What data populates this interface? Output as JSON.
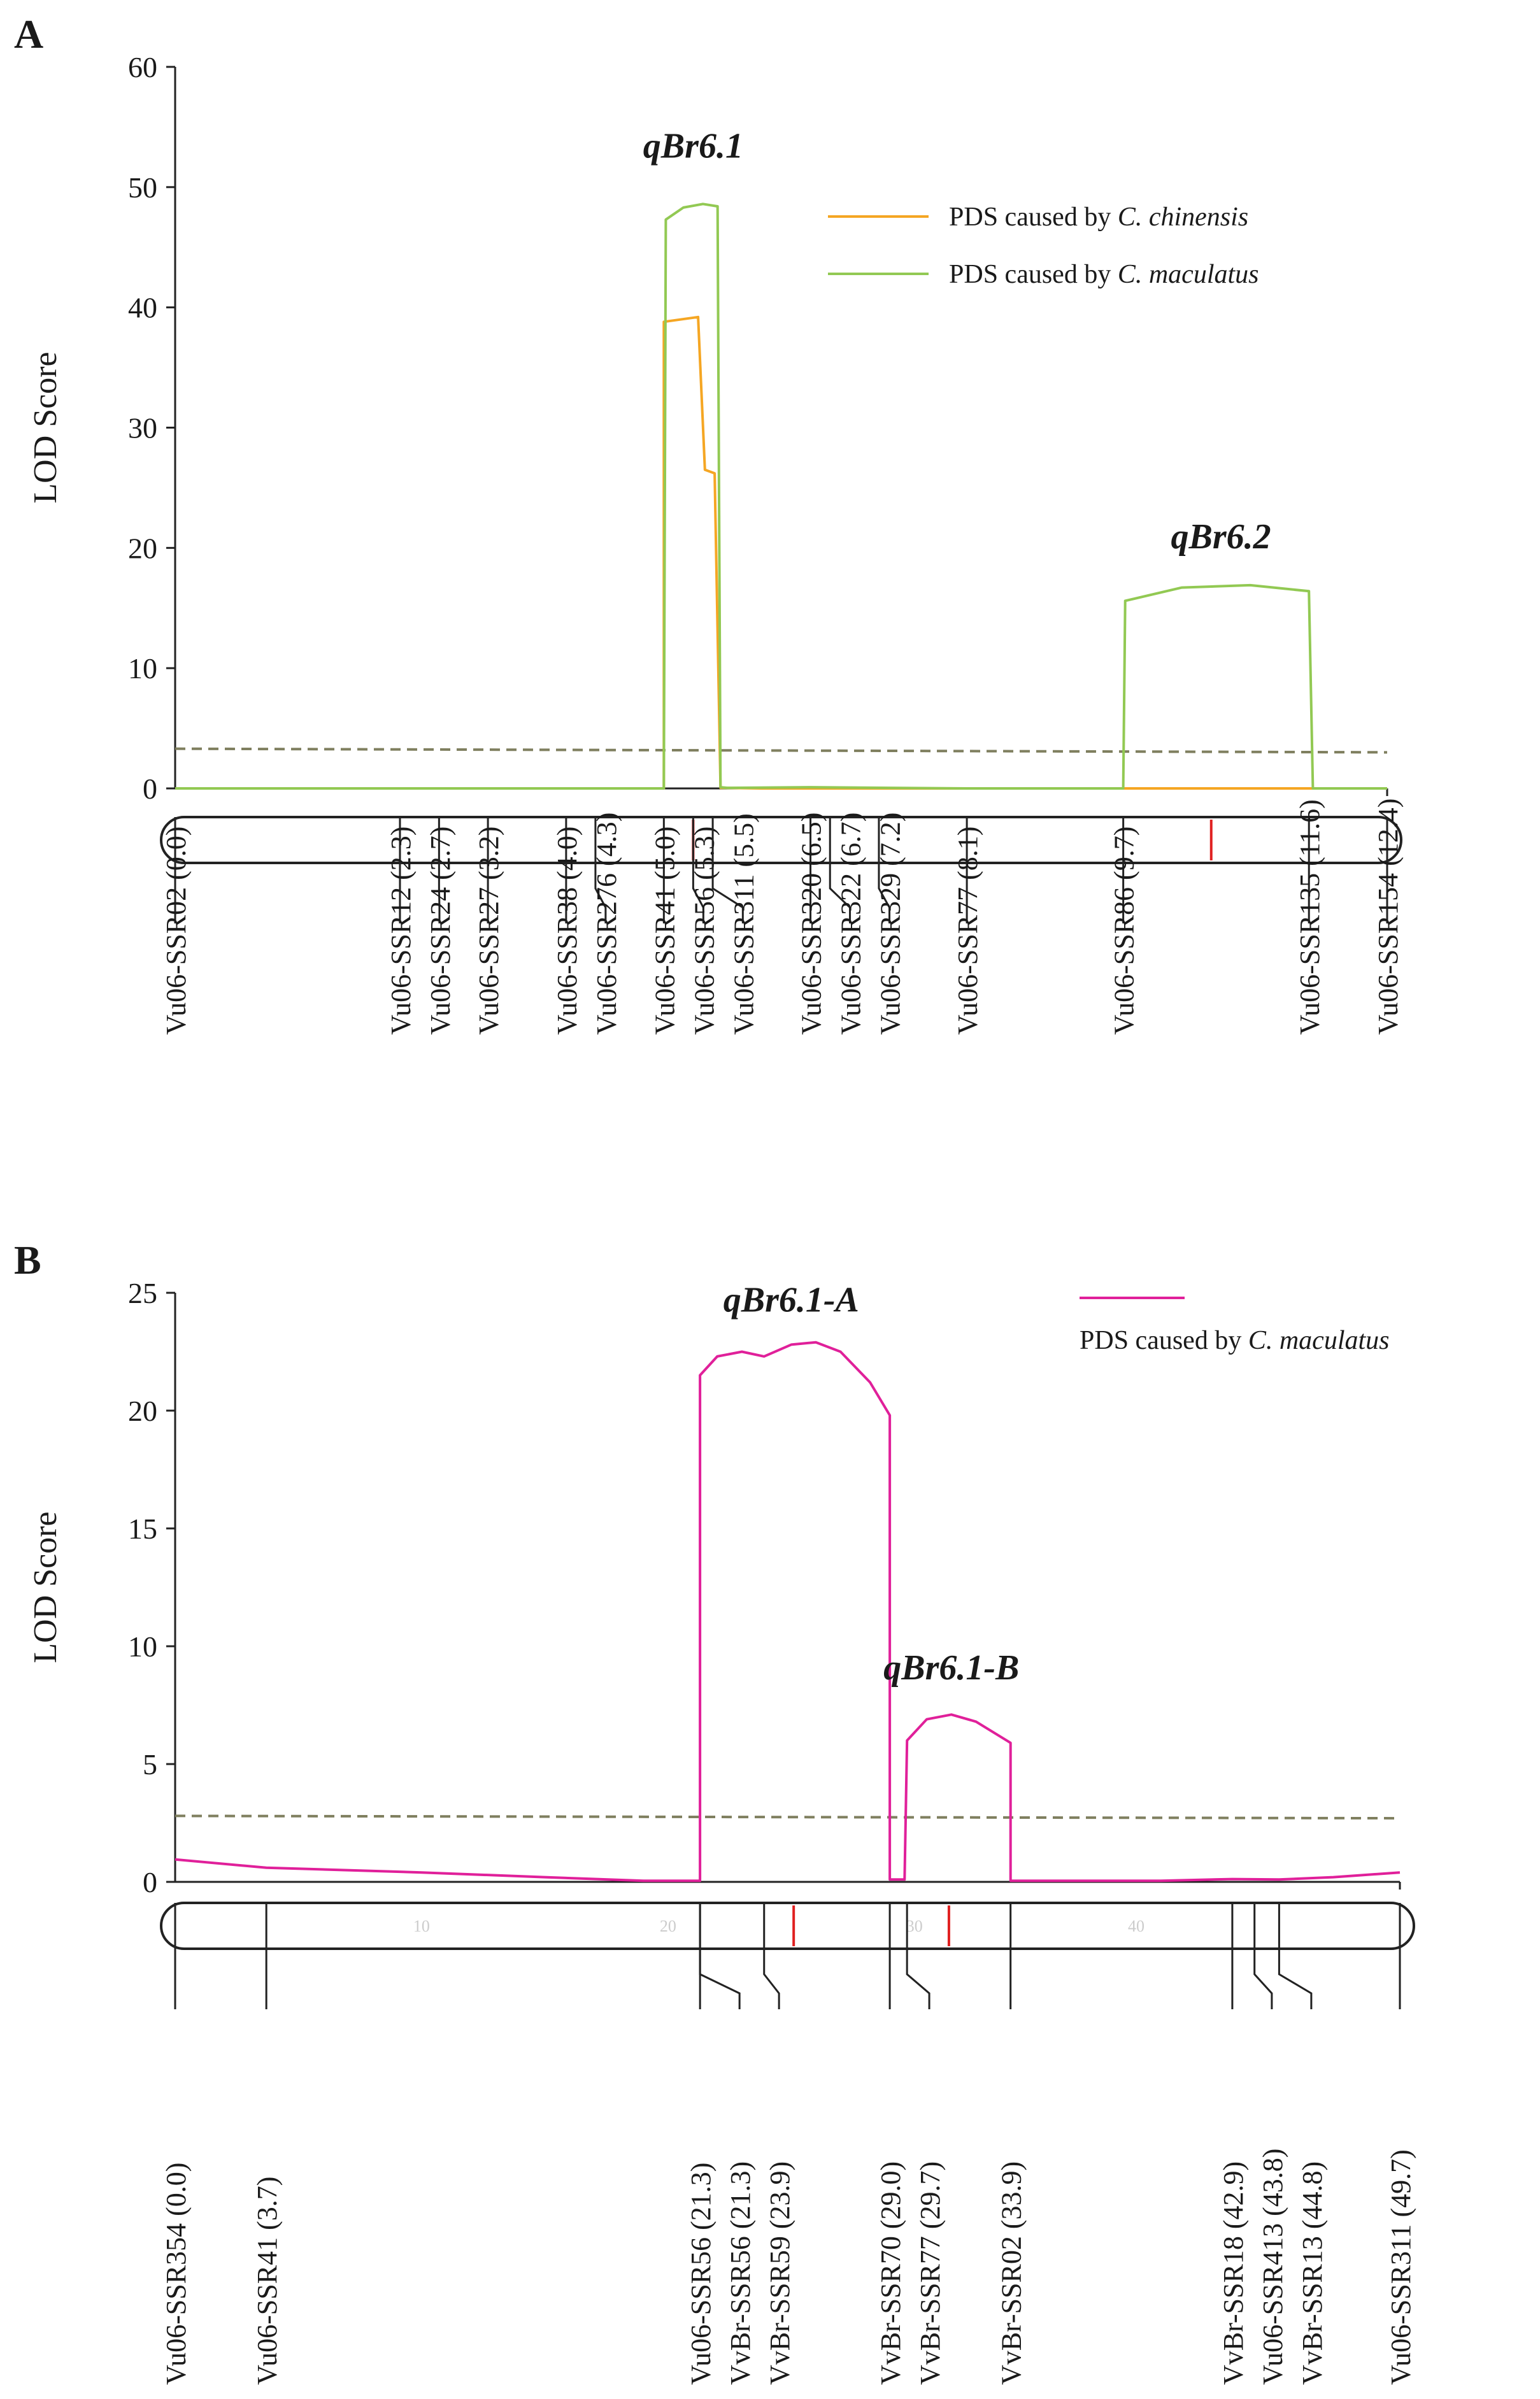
{
  "chart_data": [
    {
      "panel": "A",
      "type": "line",
      "ylabel": "LOD Score",
      "xlabel": "",
      "ylim": [
        0,
        60
      ],
      "xlim": [
        0,
        12.4
      ],
      "yticks": [
        0,
        10,
        20,
        30,
        40,
        50,
        60
      ],
      "threshold": {
        "start": 3.3,
        "end": 3.0,
        "style": "dashed",
        "color": "#7f7f5f"
      },
      "series": [
        {
          "name": "PDS caused by C. chinensis",
          "label_prefix": "PDS caused by",
          "label_species": "C. chinensis",
          "color": "#f5a623",
          "x": [
            0.0,
            2.0,
            4.0,
            4.9,
            5.0,
            5.0,
            5.35,
            5.42,
            5.52,
            5.58,
            5.58,
            6.0,
            8.0,
            9.7,
            10.5,
            11.6,
            12.4
          ],
          "y": [
            0.0,
            0.0,
            0.0,
            0.0,
            0.0,
            38.8,
            39.2,
            26.5,
            26.2,
            0.05,
            0.05,
            0.0,
            0.0,
            0.0,
            0.0,
            0.0,
            0.0
          ]
        },
        {
          "name": "PDS caused by C. maculatus",
          "label_prefix": "PDS caused by",
          "label_species": "C. maculatus",
          "color": "#92c953",
          "x": [
            0.0,
            2.0,
            4.0,
            4.9,
            5.0,
            5.02,
            5.2,
            5.4,
            5.55,
            5.58,
            5.65,
            6.5,
            8.1,
            9.7,
            9.72,
            10.3,
            11.0,
            11.6,
            11.64,
            12.4
          ],
          "y": [
            0.0,
            0.0,
            0.0,
            0.0,
            0.0,
            47.3,
            48.3,
            48.6,
            48.4,
            0.1,
            0.05,
            0.1,
            0.0,
            0.0,
            15.6,
            16.7,
            16.9,
            16.4,
            0.0,
            0.0
          ]
        }
      ],
      "annotations": [
        {
          "text": "qBr6.1",
          "x": 5.3,
          "y": 51.5
        },
        {
          "text": "qBr6.2",
          "x": 10.7,
          "y": 19.0
        }
      ],
      "highlight_positions": [
        5.3,
        10.6
      ],
      "highlight_color": "#e02020",
      "markers": [
        {
          "name": "Vu06-SSR02 (0.0)",
          "pos": 0.0
        },
        {
          "name": "Vu06-SSR12 (2.3)",
          "pos": 2.3
        },
        {
          "name": "Vu06-SSR24 (2.7)",
          "pos": 2.7
        },
        {
          "name": "Vu06-SSR27 (3.2)",
          "pos": 3.2
        },
        {
          "name": "Vu06-SSR38 (4.0)",
          "pos": 4.0
        },
        {
          "name": "Vu06-SSR276 (4.3)",
          "pos": 4.3
        },
        {
          "name": "Vu06-SSR41 (5.0)",
          "pos": 5.0
        },
        {
          "name": "Vu06-SSR56 (5.3)",
          "pos": 5.3
        },
        {
          "name": "Vu06-SSR311 (5.5)",
          "pos": 5.5
        },
        {
          "name": "Vu06-SSR320 (6.5)",
          "pos": 6.5
        },
        {
          "name": "Vu06-SSR322 (6.7)",
          "pos": 6.7
        },
        {
          "name": "Vu06-SSR329 (7.2)",
          "pos": 7.2
        },
        {
          "name": "Vu06-SSR77 (8.1)",
          "pos": 8.1
        },
        {
          "name": "Vu06-SSR86 (9.7)",
          "pos": 9.7
        },
        {
          "name": "Vu06-SSR135 (11.6)",
          "pos": 11.6
        },
        {
          "name": "Vu06-SSR154 (12.4)",
          "pos": 12.4
        }
      ]
    },
    {
      "panel": "B",
      "type": "line",
      "ylabel": "LOD Score",
      "xlabel": "",
      "ylim": [
        0,
        25
      ],
      "xlim": [
        0,
        49.7
      ],
      "yticks": [
        0,
        5,
        10,
        15,
        20,
        25
      ],
      "threshold": {
        "start": 2.8,
        "end": 2.7,
        "style": "dashed",
        "color": "#7f7f5f"
      },
      "series": [
        {
          "name": "PDS caused by C. maculatus",
          "label_prefix": "PDS caused by",
          "label_species": "C. maculatus",
          "color": "#e0209a",
          "x": [
            0.0,
            3.7,
            10.0,
            15.0,
            19.0,
            21.3,
            21.3,
            22.0,
            23.0,
            23.9,
            25.0,
            26.0,
            27.0,
            28.2,
            29.0,
            29.0,
            29.6,
            29.7,
            30.5,
            31.5,
            32.5,
            33.9,
            33.9,
            36.0,
            40.0,
            42.9,
            44.8,
            47.0,
            49.7
          ],
          "y": [
            0.95,
            0.6,
            0.4,
            0.2,
            0.05,
            0.05,
            21.5,
            22.3,
            22.5,
            22.3,
            22.8,
            22.9,
            22.5,
            21.2,
            19.8,
            0.1,
            0.1,
            6.0,
            6.9,
            7.1,
            6.8,
            5.9,
            0.05,
            0.05,
            0.05,
            0.12,
            0.1,
            0.2,
            0.4
          ]
        }
      ],
      "annotations": [
        {
          "text": "qBr6.1-A",
          "x": 25.0,
          "y": 24.2
        },
        {
          "text": "qBr6.1-B",
          "x": 31.5,
          "y": 8.6
        }
      ],
      "highlight_positions": [
        25.1,
        31.4
      ],
      "highlight_color": "#e02020",
      "region_labels": [
        {
          "text": "10",
          "pos": 10.0
        },
        {
          "text": "20",
          "pos": 20.0
        },
        {
          "text": "30",
          "pos": 30.0
        },
        {
          "text": "40",
          "pos": 39.0
        }
      ],
      "markers": [
        {
          "name": "Vu06-SSR354 (0.0)",
          "pos": 0.0
        },
        {
          "name": "Vu06-SSR41 (3.7)",
          "pos": 3.7
        },
        {
          "name": "Vu06-SSR56 (21.3)",
          "pos": 21.3
        },
        {
          "name": "VvBr-SSR56 (21.3)",
          "pos": 21.3
        },
        {
          "name": "VvBr-SSR59 (23.9)",
          "pos": 23.9
        },
        {
          "name": "VvBr-SSR70 (29.0)",
          "pos": 29.0
        },
        {
          "name": "VvBr-SSR77 (29.7)",
          "pos": 29.7
        },
        {
          "name": "VvBr-SSR02 (33.9)",
          "pos": 33.9
        },
        {
          "name": "VvBr-SSR18 (42.9)",
          "pos": 42.9
        },
        {
          "name": "Vu06-SSR413 (43.8)",
          "pos": 43.8
        },
        {
          "name": "VvBr-SSR13 (44.8)",
          "pos": 44.8
        },
        {
          "name": "Vu06-SSR311 (49.7)",
          "pos": 49.7
        }
      ]
    }
  ]
}
